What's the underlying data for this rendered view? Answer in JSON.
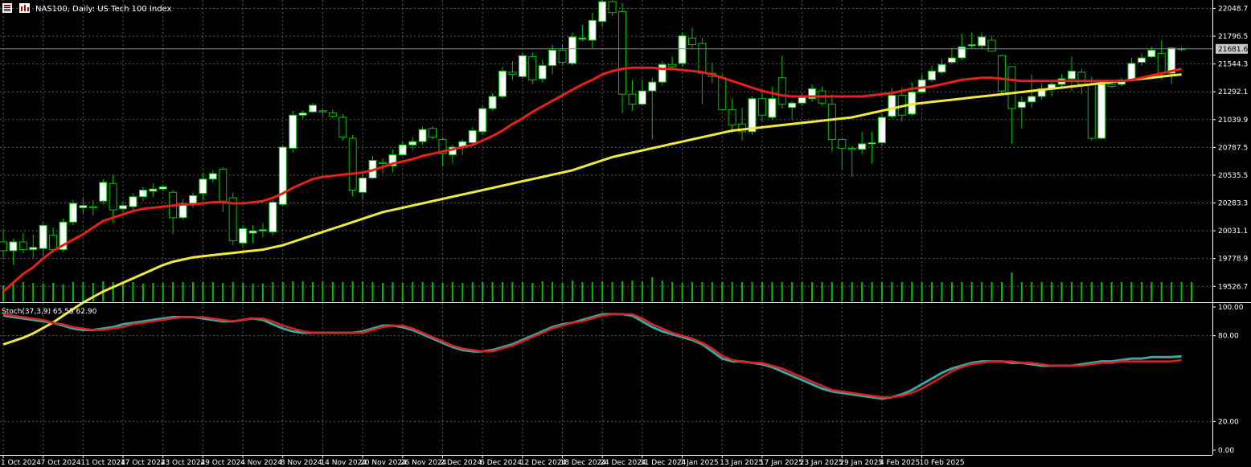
{
  "header": {
    "symbol_title": "NAS100, Daily:  US Tech 100 Index",
    "icons": [
      "chart-menu-icon",
      "symbol-icon"
    ]
  },
  "colors": {
    "background": "#000000",
    "grid": "#5a5a5a",
    "bull_candle_body": "#ffffff",
    "bear_candle_body": "#000000",
    "candle_outline": "#00c000",
    "wick": "#00c000",
    "volume": "#00c000",
    "ma_fast": "#e8201c",
    "ma_slow": "#f0e83c",
    "stoch_main": "#3aa6a0",
    "stoch_signal": "#e0201c",
    "axis_text": "#ffffff",
    "price_label_bg": "#c8c8c8"
  },
  "chart_data": {
    "type": "candlestick",
    "title": "NAS100, Daily:  US Tech 100 Index",
    "price_axis_ticks": [
      22048.7,
      21796.5,
      21544.3,
      21292.1,
      21039.9,
      20787.5,
      20535.5,
      20283.3,
      20031.1,
      19778.9,
      19526.7
    ],
    "price_axis_ticks_text": [
      "22048.7",
      "21796.5",
      "21544.3",
      "21292.1",
      "21039.9",
      "20787.5",
      "20535.5",
      "20283.3",
      "20031.1",
      "19778.9",
      "19526.7"
    ],
    "ylim": [
      19390,
      22125
    ],
    "current_price": 21681.6,
    "current_price_text": "21681.6",
    "date_labels": [
      "1 Oct 2024",
      "7 Oct 2024",
      "11 Oct 2024",
      "17 Oct 2024",
      "23 Oct 2024",
      "29 Oct 2024",
      "4 Nov 2024",
      "8 Nov 2024",
      "14 Nov 2024",
      "20 Nov 2024",
      "26 Nov 2024",
      "2 Dec 2024",
      "6 Dec 2024",
      "12 Dec 2024",
      "18 Dec 2024",
      "24 Dec 2024",
      "31 Dec 2024",
      "7 Jan 2025",
      "13 Jan 2025",
      "17 Jan 2025",
      "23 Jan 2025",
      "29 Jan 2025",
      "4 Feb 2025",
      "10 Feb 2025"
    ],
    "date_label_bar_index": [
      0,
      4,
      8,
      12,
      16,
      20,
      24,
      28,
      32,
      36,
      40,
      44,
      48,
      52,
      56,
      60,
      64,
      68,
      72,
      76,
      80,
      84,
      88,
      92
    ],
    "ohlc": [
      [
        19930,
        20050,
        19770,
        19850
      ],
      [
        19850,
        19960,
        19720,
        19930
      ],
      [
        19930,
        20010,
        19830,
        19860
      ],
      [
        19860,
        20000,
        19780,
        19880
      ],
      [
        19870,
        20110,
        19800,
        20080
      ],
      [
        19990,
        20060,
        19830,
        19860
      ],
      [
        19860,
        20140,
        19840,
        20110
      ],
      [
        20110,
        20310,
        20080,
        20280
      ],
      [
        20240,
        20330,
        20180,
        20260
      ],
      [
        20250,
        20310,
        20170,
        20240
      ],
      [
        20300,
        20500,
        20270,
        20470
      ],
      [
        20460,
        20540,
        20100,
        20220
      ],
      [
        20230,
        20300,
        20160,
        20260
      ],
      [
        20250,
        20370,
        20210,
        20340
      ],
      [
        20340,
        20430,
        20300,
        20400
      ],
      [
        20390,
        20460,
        20340,
        20410
      ],
      [
        20410,
        20450,
        20390,
        20430
      ],
      [
        20380,
        20400,
        20000,
        20150
      ],
      [
        20150,
        20320,
        20130,
        20280
      ],
      [
        20280,
        20380,
        20240,
        20350
      ],
      [
        20370,
        20560,
        20310,
        20500
      ],
      [
        20500,
        20580,
        20470,
        20550
      ],
      [
        20590,
        20610,
        20200,
        20300
      ],
      [
        20330,
        20380,
        19900,
        19940
      ],
      [
        19920,
        20080,
        19880,
        20050
      ],
      [
        20010,
        20080,
        19920,
        20030
      ],
      [
        20030,
        20100,
        19970,
        20040
      ],
      [
        20020,
        20310,
        19990,
        20290
      ],
      [
        20270,
        20810,
        20250,
        20790
      ],
      [
        20780,
        21120,
        20740,
        21080
      ],
      [
        21080,
        21120,
        21050,
        21100
      ],
      [
        21110,
        21190,
        21100,
        21170
      ],
      [
        21120,
        21140,
        21060,
        21110
      ],
      [
        21100,
        21130,
        21050,
        21070
      ],
      [
        21060,
        21090,
        20850,
        20880
      ],
      [
        20870,
        20900,
        20340,
        20400
      ],
      [
        20380,
        20570,
        20310,
        20510
      ],
      [
        20510,
        20710,
        20500,
        20670
      ],
      [
        20650,
        20690,
        20550,
        20640
      ],
      [
        20620,
        20770,
        20560,
        20720
      ],
      [
        20720,
        20840,
        20710,
        20810
      ],
      [
        20810,
        20880,
        20760,
        20840
      ],
      [
        20840,
        20980,
        20810,
        20950
      ],
      [
        20960,
        20980,
        20860,
        20880
      ],
      [
        20860,
        20870,
        20620,
        20730
      ],
      [
        20720,
        20810,
        20640,
        20790
      ],
      [
        20790,
        20860,
        20720,
        20840
      ],
      [
        20830,
        20970,
        20800,
        20940
      ],
      [
        20930,
        21160,
        20900,
        21140
      ],
      [
        21140,
        21280,
        21120,
        21250
      ],
      [
        21250,
        21520,
        21230,
        21480
      ],
      [
        21470,
        21570,
        21400,
        21450
      ],
      [
        21430,
        21650,
        21410,
        21620
      ],
      [
        21610,
        21650,
        21360,
        21400
      ],
      [
        21410,
        21580,
        21380,
        21530
      ],
      [
        21530,
        21720,
        21450,
        21670
      ],
      [
        21670,
        21720,
        21540,
        21560
      ],
      [
        21550,
        21830,
        21530,
        21790
      ],
      [
        21770,
        21900,
        21750,
        21780
      ],
      [
        21760,
        22010,
        21690,
        21940
      ],
      [
        21930,
        22130,
        21880,
        22110
      ],
      [
        22110,
        22130,
        21980,
        22010
      ],
      [
        22020,
        22100,
        21100,
        21270
      ],
      [
        21270,
        21400,
        21120,
        21180
      ],
      [
        21180,
        21400,
        21170,
        21300
      ],
      [
        21300,
        21420,
        20860,
        21380
      ],
      [
        21380,
        21570,
        21350,
        21540
      ],
      [
        21540,
        21610,
        21490,
        21520
      ],
      [
        21550,
        21830,
        21520,
        21800
      ],
      [
        21780,
        21870,
        21690,
        21720
      ],
      [
        21730,
        21780,
        21180,
        21460
      ],
      [
        21460,
        21560,
        21370,
        21430
      ],
      [
        21420,
        21450,
        21120,
        21130
      ],
      [
        21130,
        21230,
        20920,
        20990
      ],
      [
        21000,
        21150,
        20850,
        20930
      ],
      [
        20930,
        21250,
        20900,
        21230
      ],
      [
        21230,
        21290,
        21020,
        21080
      ],
      [
        21060,
        21340,
        21040,
        21230
      ],
      [
        21420,
        21620,
        21140,
        21180
      ],
      [
        21150,
        21210,
        21040,
        21190
      ],
      [
        21190,
        21280,
        21160,
        21240
      ],
      [
        21230,
        21360,
        21200,
        21320
      ],
      [
        21300,
        21340,
        21170,
        21190
      ],
      [
        21180,
        21270,
        20750,
        20860
      ],
      [
        20860,
        20870,
        20590,
        20780
      ],
      [
        20780,
        20800,
        20520,
        20770
      ],
      [
        20770,
        20930,
        20720,
        20820
      ],
      [
        20820,
        20930,
        20640,
        20830
      ],
      [
        20830,
        21090,
        20800,
        21060
      ],
      [
        21070,
        21330,
        21050,
        21260
      ],
      [
        21260,
        21330,
        21020,
        21080
      ],
      [
        21090,
        21380,
        21070,
        21290
      ],
      [
        21290,
        21450,
        21280,
        21400
      ],
      [
        21400,
        21530,
        21380,
        21480
      ],
      [
        21470,
        21590,
        21450,
        21540
      ],
      [
        21560,
        21690,
        21540,
        21600
      ],
      [
        21600,
        21820,
        21580,
        21700
      ],
      [
        21710,
        21830,
        21680,
        21720
      ],
      [
        21710,
        21830,
        21680,
        21790
      ],
      [
        21760,
        21800,
        21670,
        21660
      ],
      [
        21620,
        21630,
        21260,
        21300
      ],
      [
        21520,
        21520,
        20820,
        21140
      ],
      [
        21150,
        21250,
        20960,
        21200
      ],
      [
        21200,
        21450,
        21150,
        21250
      ],
      [
        21250,
        21370,
        21220,
        21320
      ],
      [
        21320,
        21400,
        21250,
        21360
      ],
      [
        21360,
        21450,
        21320,
        21410
      ],
      [
        21410,
        21610,
        21300,
        21480
      ],
      [
        21470,
        21500,
        21270,
        21360
      ],
      [
        21360,
        21430,
        20850,
        20870
      ],
      [
        20870,
        21380,
        20860,
        21360
      ],
      [
        21360,
        21400,
        21330,
        21340
      ],
      [
        21360,
        21420,
        21340,
        21400
      ],
      [
        21400,
        21600,
        21390,
        21550
      ],
      [
        21560,
        21640,
        21530,
        21600
      ],
      [
        21610,
        21700,
        21600,
        21670
      ],
      [
        21640,
        21760,
        21400,
        21460
      ],
      [
        21460,
        21700,
        21360,
        21690
      ],
      [
        21680,
        21700,
        21660,
        21682
      ]
    ],
    "ma_fast": [
      19480,
      19560,
      19640,
      19700,
      19780,
      19850,
      19900,
      19950,
      20000,
      20060,
      20120,
      20150,
      20180,
      20210,
      20230,
      20240,
      20250,
      20260,
      20270,
      20270,
      20280,
      20290,
      20290,
      20280,
      20280,
      20290,
      20300,
      20330,
      20370,
      20420,
      20460,
      20500,
      20520,
      20530,
      20540,
      20550,
      20560,
      20580,
      20610,
      20640,
      20660,
      20680,
      20710,
      20730,
      20750,
      20770,
      20790,
      20810,
      20850,
      20890,
      20940,
      21000,
      21050,
      21110,
      21160,
      21210,
      21260,
      21310,
      21360,
      21400,
      21450,
      21480,
      21500,
      21510,
      21510,
      21510,
      21500,
      21500,
      21490,
      21480,
      21470,
      21450,
      21420,
      21390,
      21360,
      21330,
      21300,
      21280,
      21260,
      21250,
      21250,
      21250,
      21250,
      21250,
      21250,
      21250,
      21250,
      21260,
      21270,
      21280,
      21300,
      21320,
      21330,
      21340,
      21360,
      21380,
      21400,
      21410,
      21420,
      21420,
      21410,
      21400,
      21390,
      21390,
      21390,
      21390,
      21390,
      21390,
      21390,
      21390,
      21390,
      21390,
      21390,
      21400,
      21420,
      21440,
      21460,
      21480,
      21500
    ],
    "ma_slow": [
      19000,
      19030,
      19060,
      19100,
      19150,
      19200,
      19260,
      19320,
      19380,
      19430,
      19480,
      19520,
      19560,
      19600,
      19640,
      19680,
      19720,
      19750,
      19770,
      19790,
      19800,
      19810,
      19820,
      19830,
      19840,
      19850,
      19860,
      19880,
      19900,
      19930,
      19960,
      19990,
      20020,
      20050,
      20080,
      20110,
      20140,
      20170,
      20200,
      20220,
      20240,
      20260,
      20280,
      20300,
      20320,
      20340,
      20360,
      20380,
      20400,
      20420,
      20440,
      20460,
      20480,
      20500,
      20520,
      20540,
      20560,
      20580,
      20610,
      20640,
      20670,
      20700,
      20720,
      20740,
      20760,
      20780,
      20800,
      20820,
      20840,
      20860,
      20880,
      20900,
      20920,
      20940,
      20950,
      20960,
      20970,
      20980,
      20990,
      21000,
      21010,
      21020,
      21030,
      21040,
      21050,
      21060,
      21080,
      21100,
      21120,
      21140,
      21160,
      21180,
      21190,
      21200,
      21210,
      21220,
      21230,
      21240,
      21250,
      21260,
      21270,
      21280,
      21290,
      21300,
      21310,
      21320,
      21330,
      21340,
      21350,
      21360,
      21370,
      21380,
      21390,
      21400,
      21410,
      21420,
      21430,
      21440,
      21450
    ],
    "volume": [
      20,
      22,
      24,
      23,
      22,
      23,
      21,
      24,
      24,
      23,
      25,
      24,
      23,
      24,
      22,
      23,
      23,
      24,
      24,
      24,
      24,
      24,
      23,
      24,
      23,
      22,
      22,
      24,
      24,
      25,
      25,
      24,
      25,
      24,
      24,
      25,
      25,
      24,
      23,
      24,
      23,
      24,
      24,
      24,
      23,
      24,
      23,
      24,
      24,
      24,
      24,
      24,
      24,
      23,
      25,
      24,
      23,
      26,
      24,
      24,
      25,
      24,
      25,
      26,
      25,
      30,
      26,
      24,
      23,
      24,
      24,
      24,
      24,
      24,
      24,
      24,
      24,
      24,
      24,
      24,
      24,
      24,
      24,
      24,
      24,
      24,
      24,
      24,
      24,
      24,
      24,
      24,
      24,
      24,
      24,
      24,
      24,
      24,
      24,
      24,
      24,
      36,
      24,
      24,
      24,
      24,
      24,
      24,
      24,
      24,
      24,
      24,
      24,
      24,
      24,
      24,
      24,
      24,
      24,
      24
    ],
    "stochastic": {
      "label": "Stoch(37,3,9) 65.55 62.90",
      "ylim": [
        0,
        100
      ],
      "ticks": [
        100,
        80,
        20,
        0
      ],
      "ticks_text": [
        "100.00",
        "80.00",
        "20.00",
        "0.00"
      ],
      "main": [
        94,
        93,
        92,
        91,
        90,
        89,
        87,
        85,
        84,
        84,
        85,
        86,
        88,
        89,
        90,
        91,
        92,
        93,
        93,
        93,
        92,
        91,
        90,
        90,
        91,
        92,
        91,
        88,
        85,
        83,
        82,
        82,
        82,
        82,
        82,
        82,
        83,
        85,
        87,
        87,
        86,
        84,
        81,
        78,
        75,
        72,
        70,
        69,
        69,
        70,
        72,
        74,
        77,
        80,
        83,
        86,
        88,
        89,
        91,
        93,
        95,
        95,
        95,
        94,
        90,
        86,
        83,
        81,
        79,
        77,
        74,
        69,
        64,
        62,
        62,
        61,
        60,
        58,
        55,
        52,
        49,
        46,
        43,
        41,
        40,
        39,
        38,
        37,
        36,
        37,
        39,
        42,
        46,
        50,
        54,
        57,
        59,
        61,
        62,
        62,
        62,
        61,
        61,
        60,
        59,
        59,
        59,
        59,
        60,
        61,
        62,
        62,
        63,
        64,
        64,
        65,
        65,
        65,
        65.55
      ],
      "signal": [
        95,
        94,
        93,
        92,
        91,
        89,
        88,
        86,
        85,
        84,
        84,
        85,
        86,
        88,
        89,
        90,
        91,
        92,
        93,
        93,
        93,
        92,
        91,
        90,
        91,
        92,
        92,
        90,
        87,
        85,
        83,
        82,
        82,
        82,
        82,
        82,
        82,
        84,
        86,
        87,
        87,
        85,
        82,
        79,
        76,
        73,
        71,
        70,
        69,
        69,
        71,
        73,
        76,
        79,
        82,
        85,
        87,
        89,
        90,
        92,
        94,
        95,
        95,
        95,
        92,
        88,
        85,
        82,
        80,
        78,
        75,
        71,
        66,
        63,
        62,
        61,
        61,
        59,
        57,
        54,
        51,
        48,
        45,
        42,
        41,
        40,
        39,
        38,
        37,
        37,
        38,
        40,
        43,
        47,
        51,
        55,
        58,
        60,
        61,
        62,
        62,
        62,
        61,
        61,
        60,
        59,
        59,
        59,
        59,
        60,
        61,
        61,
        62,
        62,
        62,
        62,
        62,
        62,
        62.9
      ]
    }
  }
}
